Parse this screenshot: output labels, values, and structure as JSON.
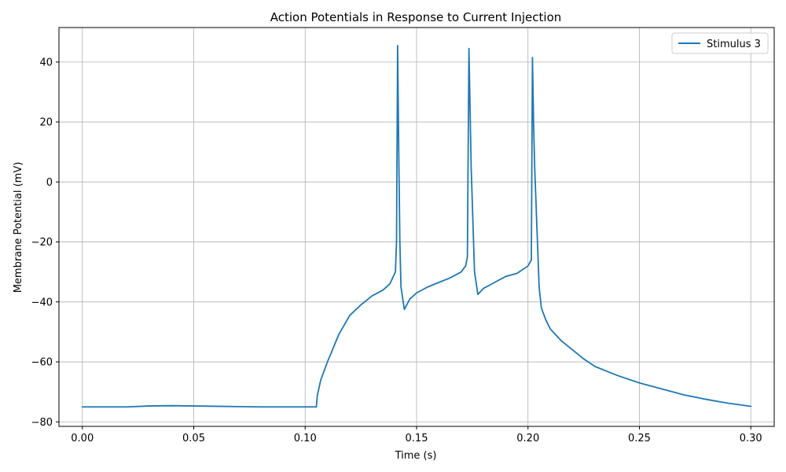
{
  "chart_data": {
    "type": "line",
    "title": "Action Potentials in Response to Current Injection",
    "xlabel": "Time (s)",
    "ylabel": "Membrane Potential (mV)",
    "xlim": [
      -0.0105,
      0.3105
    ],
    "ylim": [
      -81.5,
      51.5
    ],
    "xticks": [
      0.0,
      0.05,
      0.1,
      0.15,
      0.2,
      0.25,
      0.3
    ],
    "xtick_labels": [
      "0.00",
      "0.05",
      "0.10",
      "0.15",
      "0.20",
      "0.25",
      "0.30"
    ],
    "yticks": [
      -80,
      -60,
      -40,
      -20,
      0,
      20,
      40
    ],
    "ytick_labels": [
      "−80",
      "−60",
      "−40",
      "−20",
      "0",
      "20",
      "40"
    ],
    "grid": true,
    "legend_position": "top-right",
    "colors": {
      "series": "#1f77b4",
      "grid": "#b0b0b0"
    },
    "series": [
      {
        "name": "Stimulus 3",
        "x": [
          0.0,
          0.01,
          0.02,
          0.03,
          0.04,
          0.05,
          0.06,
          0.07,
          0.08,
          0.09,
          0.1,
          0.105,
          0.1055,
          0.107,
          0.11,
          0.115,
          0.12,
          0.125,
          0.13,
          0.135,
          0.138,
          0.1405,
          0.141,
          0.1415,
          0.142,
          0.1425,
          0.143,
          0.1445,
          0.147,
          0.15,
          0.155,
          0.16,
          0.165,
          0.17,
          0.172,
          0.1728,
          0.1735,
          0.1745,
          0.176,
          0.1775,
          0.18,
          0.185,
          0.19,
          0.195,
          0.2,
          0.2015,
          0.202,
          0.2025,
          0.203,
          0.204,
          0.205,
          0.206,
          0.208,
          0.21,
          0.215,
          0.22,
          0.225,
          0.23,
          0.24,
          0.25,
          0.26,
          0.27,
          0.28,
          0.29,
          0.3
        ],
        "y": [
          -75,
          -75,
          -75,
          -74.7,
          -74.6,
          -74.7,
          -74.8,
          -74.9,
          -75,
          -75,
          -75,
          -75,
          -71,
          -66,
          -60,
          -51,
          -44.5,
          -41,
          -38,
          -36,
          -34,
          -30,
          -20,
          45.5,
          10,
          -20,
          -35,
          -42.5,
          -39,
          -37,
          -35,
          -33.5,
          -32,
          -30,
          -28,
          -25,
          44.5,
          5,
          -30,
          -37.5,
          -35.5,
          -33.5,
          -31.5,
          -30.5,
          -28,
          -26,
          41.5,
          20,
          5,
          -15,
          -35,
          -42,
          -46,
          -49,
          -53,
          -56,
          -59,
          -61.5,
          -64.5,
          -67,
          -69,
          -71,
          -72.5,
          -73.8,
          -74.8
        ]
      }
    ]
  }
}
